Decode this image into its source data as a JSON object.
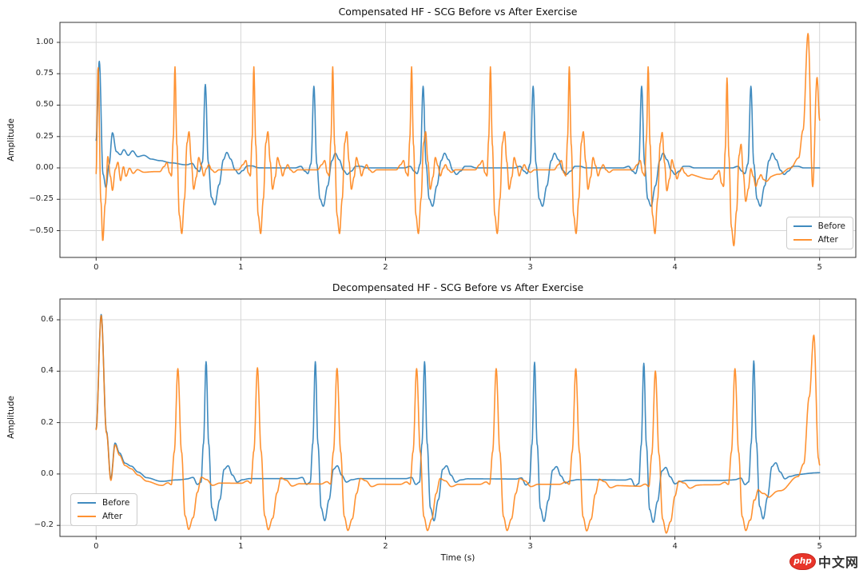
{
  "figure": {
    "background": "#ffffff"
  },
  "watermark": {
    "badge_text": "php",
    "site_text": "中文网",
    "badge_color": "#e8352a",
    "text_color": "#333333"
  },
  "chart_data": [
    {
      "type": "line",
      "title": "Compensated HF - SCG Before vs After Exercise",
      "xlabel": "",
      "ylabel": "Amplitude",
      "x_range": [
        0,
        5
      ],
      "xlim": [
        -0.25,
        5.25
      ],
      "ylim": [
        -0.713,
        1.159
      ],
      "grid": true,
      "x_tick_values": [
        0,
        1,
        2,
        3,
        4,
        5
      ],
      "x_tick_labels": [
        "0",
        "1",
        "2",
        "3",
        "4",
        "5"
      ],
      "y_tick_values": [
        1.0,
        0.75,
        0.5,
        0.25,
        0.0,
        -0.25,
        -0.5
      ],
      "y_tick_labels": [
        "1.00",
        "0.75",
        "0.50",
        "0.25",
        "0.00",
        "−0.25",
        "−0.50"
      ],
      "legend_position": "lower right",
      "series": [
        {
          "name": "Before",
          "color": "#1f77b4",
          "opacity": 0.85,
          "beat_amplitude": 0.65,
          "beat_times": [
            0.755,
            1.505,
            2.26,
            3.02,
            3.77,
            4.525
          ],
          "beat_template": [
            [
              -0.13,
              0
            ],
            [
              -0.09,
              0.02
            ],
            [
              -0.062,
              -0.04
            ],
            [
              -0.042,
              -0.07
            ],
            [
              -0.02,
              0.05
            ],
            [
              0,
              1
            ],
            [
              0.02,
              0.05
            ],
            [
              0.042,
              -0.38
            ],
            [
              0.065,
              -0.47
            ],
            [
              0.095,
              -0.22
            ],
            [
              0.125,
              0.09
            ],
            [
              0.148,
              0.18
            ],
            [
              0.175,
              0.1
            ],
            [
              0.205,
              -0.03
            ],
            [
              0.23,
              -0.08
            ],
            [
              0.258,
              -0.04
            ],
            [
              0.29,
              0.02
            ],
            [
              0.325,
              0.02
            ],
            [
              0.365,
              0
            ]
          ],
          "onset_points": [
            [
              0,
              0.22
            ],
            [
              0.022,
              0.85
            ],
            [
              0.048,
              -0.05
            ],
            [
              0.068,
              -0.155
            ],
            [
              0.09,
              0.03
            ],
            [
              0.113,
              0.28
            ],
            [
              0.14,
              0.13
            ],
            [
              0.168,
              0.105
            ],
            [
              0.192,
              0.145
            ],
            [
              0.222,
              0.1
            ],
            [
              0.252,
              0.135
            ],
            [
              0.288,
              0.09
            ],
            [
              0.33,
              0.1
            ],
            [
              0.382,
              0.07
            ],
            [
              0.44,
              0.058
            ],
            [
              0.52,
              0.04
            ],
            [
              0.62,
              0.025
            ],
            [
              0.75,
              0.014
            ],
            [
              0.95,
              0.005
            ],
            [
              1.2,
              0
            ]
          ],
          "baseline_points": [
            [
              -0.25,
              0
            ],
            [
              5,
              0
            ]
          ]
        },
        {
          "name": "After",
          "color": "#ff7f0e",
          "opacity": 0.85,
          "beat_amplitude": 0.82,
          "beat_times": [
            0.545,
            1.09,
            1.635,
            2.18,
            2.725,
            3.27,
            3.815,
            4.36
          ],
          "beat_template": [
            [
              -0.105,
              0
            ],
            [
              -0.075,
              0.05
            ],
            [
              -0.055,
              0.09
            ],
            [
              -0.038,
              -0.03
            ],
            [
              -0.024,
              -0.06
            ],
            [
              -0.012,
              0.3
            ],
            [
              0,
              1
            ],
            [
              0.013,
              0.25
            ],
            [
              0.03,
              -0.44
            ],
            [
              0.047,
              -0.62
            ],
            [
              0.066,
              -0.28
            ],
            [
              0.083,
              0.26
            ],
            [
              0.097,
              0.37
            ],
            [
              0.113,
              0.08
            ],
            [
              0.129,
              -0.19
            ],
            [
              0.148,
              -0.07
            ],
            [
              0.164,
              0.12
            ],
            [
              0.182,
              0.04
            ],
            [
              0.199,
              -0.06
            ],
            [
              0.217,
              0.01
            ],
            [
              0.234,
              0.05
            ],
            [
              0.253,
              0
            ],
            [
              0.275,
              -0.025
            ],
            [
              0.305,
              0
            ]
          ],
          "onset_points": [
            [
              0,
              -0.04
            ],
            [
              0.014,
              0.81
            ],
            [
              0.033,
              -0.26
            ],
            [
              0.046,
              -0.575
            ],
            [
              0.063,
              -0.28
            ],
            [
              0.081,
              0.1
            ],
            [
              0.099,
              -0.06
            ],
            [
              0.113,
              -0.17
            ],
            [
              0.133,
              0
            ],
            [
              0.151,
              0.055
            ],
            [
              0.169,
              -0.09
            ],
            [
              0.189,
              0.02
            ],
            [
              0.206,
              -0.055
            ],
            [
              0.231,
              0.01
            ],
            [
              0.256,
              -0.03
            ],
            [
              0.286,
              0
            ],
            [
              0.33,
              -0.02
            ],
            [
              0.4,
              -0.015
            ],
            [
              0.5,
              -0.015
            ]
          ],
          "baseline_points": [
            [
              -0.25,
              0
            ],
            [
              0.4,
              -0.015
            ],
            [
              3.85,
              -0.015
            ],
            [
              4.05,
              -0.04
            ],
            [
              4.25,
              -0.09
            ],
            [
              4.45,
              -0.115
            ],
            [
              4.6,
              -0.095
            ],
            [
              4.72,
              -0.05
            ],
            [
              4.8,
              0
            ],
            [
              4.855,
              0.08
            ],
            [
              4.885,
              0.3
            ],
            [
              4.92,
              1.07
            ],
            [
              4.952,
              -0.15
            ],
            [
              4.982,
              0.72
            ],
            [
              5,
              0.38
            ]
          ]
        }
      ]
    },
    {
      "type": "line",
      "title": "Decompensated HF - SCG Before vs After Exercise",
      "xlabel": "Time (s)",
      "ylabel": "Amplitude",
      "x_range": [
        0,
        5
      ],
      "xlim": [
        -0.25,
        5.25
      ],
      "ylim": [
        -0.243,
        0.681
      ],
      "grid": true,
      "x_tick_values": [
        0,
        1,
        2,
        3,
        4,
        5
      ],
      "x_tick_labels": [
        "0",
        "1",
        "2",
        "3",
        "4",
        "5"
      ],
      "y_tick_values": [
        0.6,
        0.4,
        0.2,
        0.0,
        -0.2
      ],
      "y_tick_labels": [
        "0.6",
        "0.4",
        "0.2",
        "0.0",
        "−0.2"
      ],
      "legend_position": "lower left",
      "series": [
        {
          "name": "Before",
          "color": "#1f77b4",
          "opacity": 0.85,
          "beat_amplitude": 0.455,
          "beat_times": [
            0.76,
            1.515,
            2.27,
            3.03,
            3.785,
            4.545
          ],
          "beat_template": [
            [
              -0.13,
              0
            ],
            [
              -0.09,
              0.01
            ],
            [
              -0.06,
              -0.05
            ],
            [
              -0.035,
              -0.03
            ],
            [
              -0.018,
              0.3
            ],
            [
              0,
              1
            ],
            [
              0.018,
              0.3
            ],
            [
              0.04,
              -0.25
            ],
            [
              0.065,
              -0.36
            ],
            [
              0.095,
              -0.18
            ],
            [
              0.125,
              0.08
            ],
            [
              0.152,
              0.11
            ],
            [
              0.182,
              0.03
            ],
            [
              0.215,
              -0.03
            ],
            [
              0.25,
              -0.01
            ],
            [
              0.3,
              0
            ]
          ],
          "onset_points": [
            [
              0,
              0.18
            ],
            [
              0.035,
              0.625
            ],
            [
              0.072,
              0.17
            ],
            [
              0.102,
              -0.012
            ],
            [
              0.131,
              0.128
            ],
            [
              0.162,
              0.09
            ],
            [
              0.2,
              0.052
            ],
            [
              0.242,
              0.042
            ],
            [
              0.292,
              0.02
            ],
            [
              0.35,
              0
            ],
            [
              0.45,
              -0.012
            ],
            [
              0.56,
              -0.005
            ],
            [
              0.66,
              0
            ]
          ],
          "baseline_points": [
            [
              -0.25,
              0
            ],
            [
              0.6,
              -0.018
            ],
            [
              2.2,
              -0.018
            ],
            [
              4.3,
              -0.025
            ],
            [
              4.78,
              -0.005
            ],
            [
              5,
              0.005
            ]
          ]
        },
        {
          "name": "After",
          "color": "#ff7f0e",
          "opacity": 0.85,
          "beat_amplitude": 0.45,
          "beat_times": [
            0.565,
            1.115,
            1.665,
            2.215,
            2.765,
            3.315,
            3.865,
            4.415
          ],
          "beat_template": [
            [
              -0.11,
              0
            ],
            [
              -0.07,
              0.02
            ],
            [
              -0.045,
              0
            ],
            [
              -0.025,
              0.28
            ],
            [
              0,
              1
            ],
            [
              0.025,
              0.28
            ],
            [
              0.05,
              -0.28
            ],
            [
              0.075,
              -0.4
            ],
            [
              0.105,
              -0.3
            ],
            [
              0.135,
              -0.08
            ],
            [
              0.162,
              0.05
            ],
            [
              0.198,
              0.03
            ],
            [
              0.24,
              -0.02
            ],
            [
              0.29,
              0
            ]
          ],
          "onset_points": [
            [
              0,
              0.18
            ],
            [
              0.035,
              0.625
            ],
            [
              0.072,
              0.17
            ],
            [
              0.102,
              -0.012
            ],
            [
              0.131,
              0.128
            ],
            [
              0.162,
              0.09
            ],
            [
              0.2,
              0.052
            ],
            [
              0.242,
              0.042
            ],
            [
              0.292,
              0.02
            ],
            [
              0.35,
              0
            ],
            [
              0.45,
              -0.012
            ],
            [
              0.56,
              -0.005
            ],
            [
              0.66,
              0
            ]
          ],
          "baseline_points": [
            [
              -0.25,
              0
            ],
            [
              0.6,
              -0.035
            ],
            [
              2,
              -0.04
            ],
            [
              3.2,
              -0.04
            ],
            [
              4,
              -0.05
            ],
            [
              4.22,
              -0.042
            ],
            [
              4.5,
              -0.04
            ],
            [
              4.6,
              -0.09
            ],
            [
              4.73,
              -0.065
            ],
            [
              4.85,
              -0.01
            ],
            [
              4.89,
              0.04
            ],
            [
              4.928,
              0.3
            ],
            [
              4.96,
              0.54
            ],
            [
              4.992,
              0.06
            ],
            [
              5,
              0.035
            ]
          ]
        }
      ]
    }
  ]
}
